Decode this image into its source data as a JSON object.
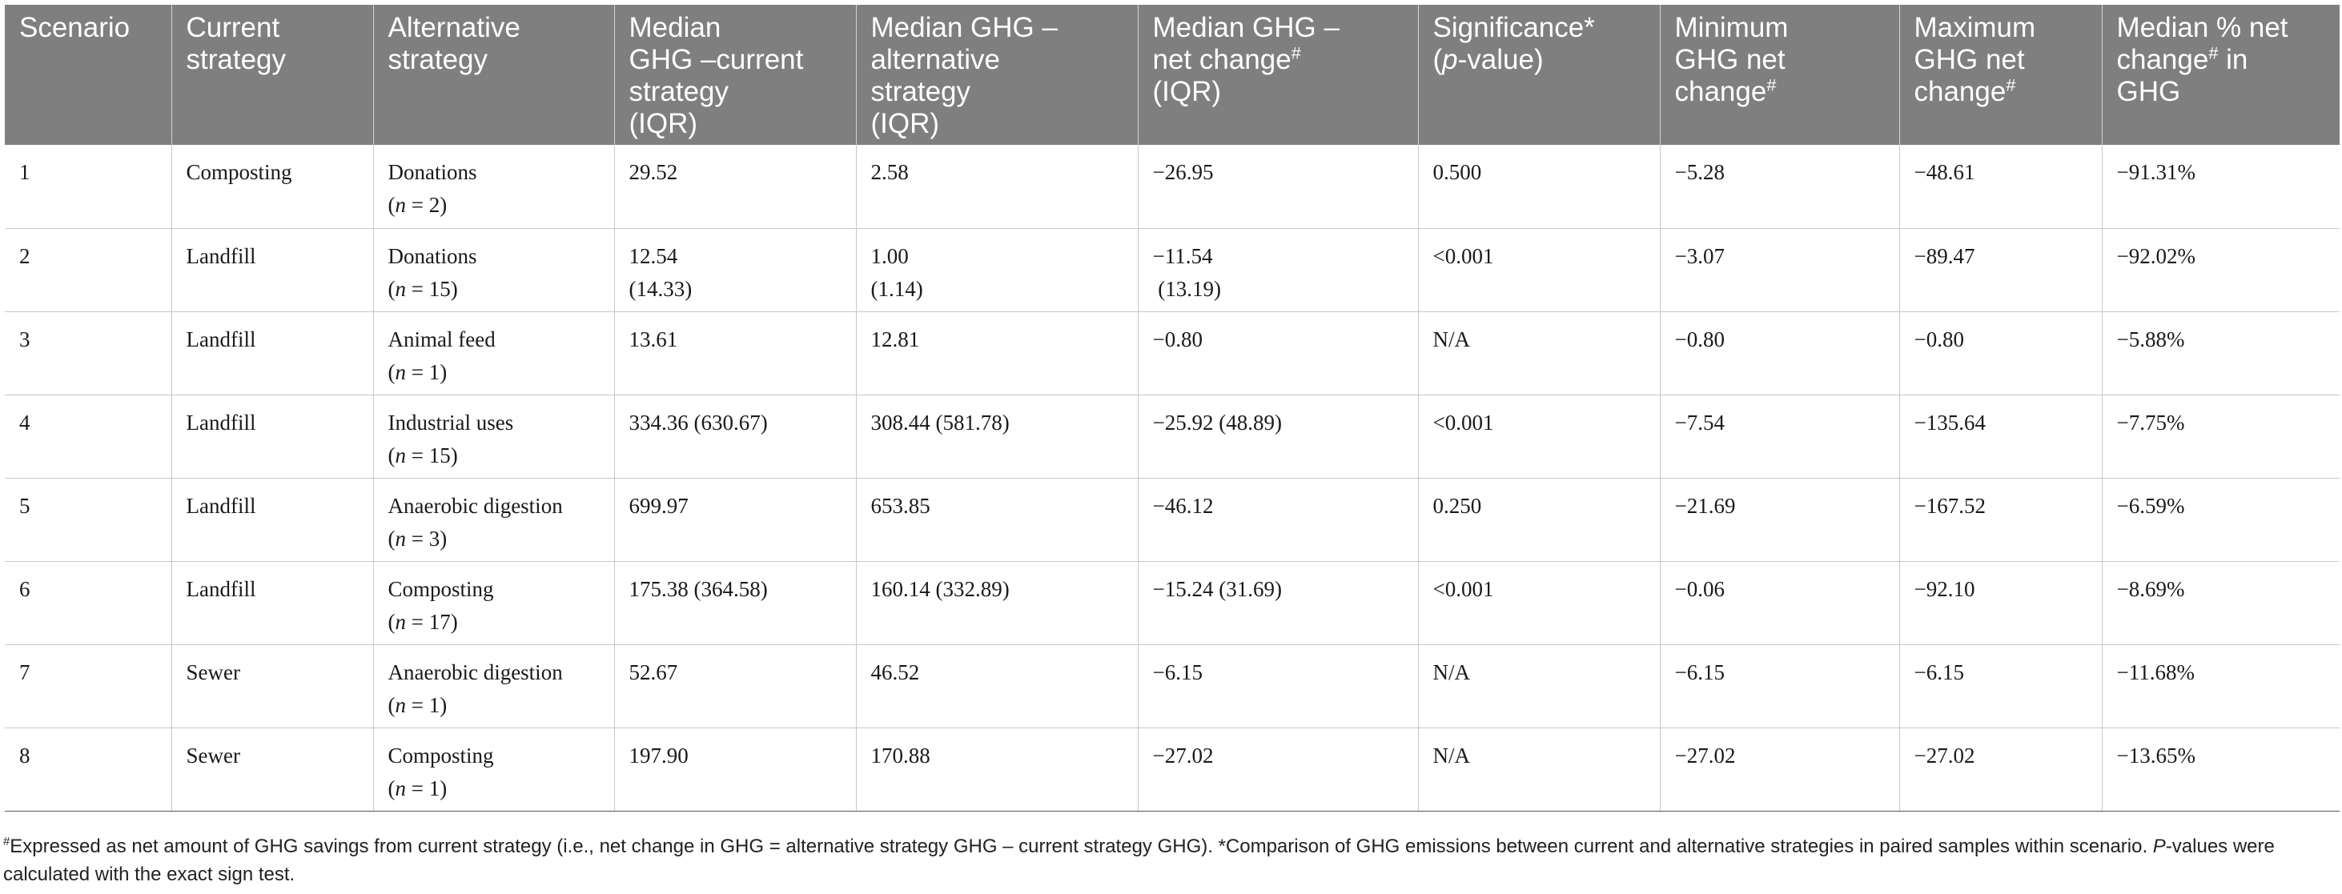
{
  "table": {
    "headers": [
      {
        "lines": [
          "Scenario"
        ]
      },
      {
        "lines": [
          "Current",
          "strategy"
        ]
      },
      {
        "lines": [
          "Alternative",
          "strategy"
        ]
      },
      {
        "lines": [
          "Median",
          "GHG –current",
          "strategy",
          "(IQR)"
        ]
      },
      {
        "lines": [
          "Median GHG –",
          "alternative",
          "strategy",
          "(IQR)"
        ]
      },
      {
        "lines": [
          "Median GHG –",
          "net change",
          "(IQR)"
        ],
        "sup_line": 1,
        "sup": "#"
      },
      {
        "lines": [
          "Significance*",
          "(p-value)"
        ],
        "italic_p_line": 1
      },
      {
        "lines": [
          "Minimum",
          "GHG net",
          "change"
        ],
        "sup_line": 2,
        "sup": "#"
      },
      {
        "lines": [
          "Maximum",
          "GHG net",
          "change"
        ],
        "sup_line": 2,
        "sup": "#"
      },
      {
        "lines": [
          "Median % net",
          "change",
          "in",
          "GHG"
        ],
        "sup_line": 1,
        "sup": "#"
      }
    ],
    "header_text": {
      "h6_l1a": "Median GHG –",
      "h6_l2a": "net change",
      "h6_sup": "#",
      "h6_l3": "(IQR)",
      "h7_l1": "Significance*",
      "h7_l2a": "(",
      "h7_l2b": "p",
      "h7_l2c": "-value)",
      "h8_l1": "Minimum",
      "h8_l2": "GHG net",
      "h8_l3": "change",
      "h9_l1": "Maximum",
      "h9_l2": "GHG net",
      "h9_l3": "change",
      "h10_l1": "Median % net",
      "h10_l2a": "change",
      "h10_l2b": " in",
      "h10_l3": "GHG"
    },
    "rows": [
      {
        "scenario": "1",
        "current": "Composting",
        "alt": "Donations",
        "n": "(n = 2)",
        "n_pre": "(",
        "n_var": "n",
        "n_post": " = 2)",
        "med_cur": [
          "29.52"
        ],
        "med_alt": [
          "2.58"
        ],
        "net": [
          "−26.95"
        ],
        "sig": "0.500",
        "min": "−5.28",
        "max": "−48.61",
        "pct": "−91.31%"
      },
      {
        "scenario": "2",
        "current": "Landfill",
        "alt": "Donations",
        "n_pre": "(",
        "n_var": "n",
        "n_post": " = 15)",
        "med_cur": [
          "12.54",
          "(14.33)"
        ],
        "med_alt": [
          "1.00",
          "(1.14)"
        ],
        "net": [
          "−11.54",
          " (13.19)"
        ],
        "sig": "<0.001",
        "min": "−3.07",
        "max": "−89.47",
        "pct": "−92.02%"
      },
      {
        "scenario": "3",
        "current": "Landfill",
        "alt": "Animal feed",
        "n_pre": "(",
        "n_var": "n",
        "n_post": " = 1)",
        "med_cur": [
          "13.61"
        ],
        "med_alt": [
          "12.81"
        ],
        "net": [
          "−0.80"
        ],
        "sig": "N/A",
        "min": "−0.80",
        "max": "−0.80",
        "pct": "−5.88%"
      },
      {
        "scenario": "4",
        "current": "Landfill",
        "alt": "Industrial uses",
        "n_pre": "(",
        "n_var": "n",
        "n_post": " = 15)",
        "med_cur": [
          "334.36 (630.67)"
        ],
        "med_alt": [
          "308.44 (581.78)"
        ],
        "net": [
          "−25.92 (48.89)"
        ],
        "sig": "<0.001",
        "min": "−7.54",
        "max": "−135.64",
        "pct": "−7.75%"
      },
      {
        "scenario": "5",
        "current": "Landfill",
        "alt": "Anaerobic digestion",
        "n_pre": "(",
        "n_var": "n",
        "n_post": " = 3)",
        "med_cur": [
          "699.97"
        ],
        "med_alt": [
          "653.85"
        ],
        "net": [
          "−46.12"
        ],
        "sig": "0.250",
        "min": "−21.69",
        "max": "−167.52",
        "pct": "−6.59%"
      },
      {
        "scenario": "6",
        "current": "Landfill",
        "alt": "Composting",
        "n_pre": "(",
        "n_var": "n",
        "n_post": " = 17)",
        "med_cur": [
          "175.38 (364.58)"
        ],
        "med_alt": [
          "160.14 (332.89)"
        ],
        "net": [
          "−15.24 (31.69)"
        ],
        "sig": "<0.001",
        "min": "−0.06",
        "max": "−92.10",
        "pct": "−8.69%"
      },
      {
        "scenario": "7",
        "current": "Sewer",
        "alt": "Anaerobic digestion",
        "n_pre": "(",
        "n_var": "n",
        "n_post": " = 1)",
        "med_cur": [
          "52.67"
        ],
        "med_alt": [
          "46.52"
        ],
        "net": [
          "−6.15"
        ],
        "sig": "N/A",
        "min": "−6.15",
        "max": "−6.15",
        "pct": "−11.68%"
      },
      {
        "scenario": "8",
        "current": "Sewer",
        "alt": "Composting",
        "n_pre": "(",
        "n_var": "n",
        "n_post": " = 1)",
        "med_cur": [
          "197.90"
        ],
        "med_alt": [
          "170.88"
        ],
        "net": [
          "−27.02"
        ],
        "sig": "N/A",
        "min": "−27.02",
        "max": "−27.02",
        "pct": "−13.65%"
      }
    ]
  },
  "footnote": {
    "hash": "#",
    "part1": "Expressed as net amount of GHG savings from current strategy (i.e., net change in GHG = alternative strategy GHG – current strategy GHG). *Comparison of GHG emissions between current and alternative strategies in paired samples within scenario. ",
    "p_italic": "P",
    "part2": "-values were calculated with the exact sign test."
  }
}
